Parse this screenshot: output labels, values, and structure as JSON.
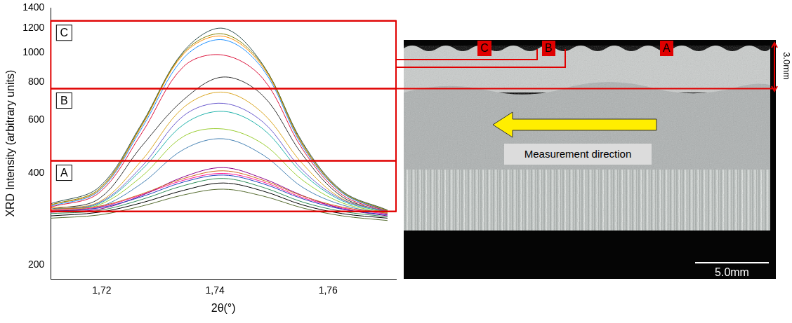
{
  "chart_data": {
    "type": "line",
    "x_label": "2θ(°)",
    "y_label": "XRD Intensity (arbitrary units)",
    "log": "y",
    "grid": false,
    "marker": "none",
    "line_style": "solid",
    "xlim": [
      1.711,
      1.772
    ],
    "xticks": [
      {
        "value": 1.72,
        "label": "1,72"
      },
      {
        "value": 1.74,
        "label": "1,74"
      },
      {
        "value": 1.76,
        "label": "1,76"
      }
    ],
    "ylim": [
      180,
      1400
    ],
    "yticks": [
      200,
      400,
      600,
      800,
      1000,
      1200,
      1400
    ],
    "x": [
      1.711,
      1.7195,
      1.727,
      1.7345,
      1.7415,
      1.7485,
      1.7555,
      1.7625,
      1.7705
    ],
    "series": [
      {
        "color": "#1f3fbf",
        "values": [
          300,
          308,
          335,
          375,
          395,
          370,
          330,
          305,
          292
        ]
      },
      {
        "color": "#2e8b57",
        "values": [
          295,
          302,
          328,
          365,
          385,
          360,
          322,
          300,
          288
        ]
      },
      {
        "color": "#000000",
        "values": [
          290,
          298,
          320,
          352,
          372,
          350,
          315,
          295,
          285
        ]
      },
      {
        "color": "#d2691e",
        "values": [
          305,
          312,
          342,
          385,
          408,
          380,
          337,
          310,
          296
        ]
      },
      {
        "color": "#8b008b",
        "values": [
          298,
          305,
          338,
          390,
          418,
          385,
          338,
          306,
          290
        ]
      },
      {
        "color": "#556b2f",
        "values": [
          285,
          292,
          312,
          340,
          355,
          337,
          308,
          290,
          280
        ]
      },
      {
        "color": "#ff1493",
        "values": [
          302,
          310,
          340,
          380,
          400,
          375,
          333,
          308,
          294
        ]
      },
      {
        "color": "#4682b4",
        "values": [
          300,
          310,
          370,
          480,
          520,
          460,
          360,
          315,
          295
        ]
      },
      {
        "color": "#9acd32",
        "values": [
          302,
          315,
          390,
          530,
          560,
          500,
          380,
          320,
          297
        ]
      },
      {
        "color": "#20b2aa",
        "values": [
          305,
          318,
          410,
          580,
          640,
          560,
          400,
          325,
          298
        ]
      },
      {
        "color": "#6a5acd",
        "values": [
          305,
          320,
          420,
          620,
          680,
          590,
          410,
          328,
          300
        ]
      },
      {
        "color": "#daa520",
        "values": [
          308,
          322,
          440,
          660,
          740,
          630,
          430,
          330,
          300
        ]
      },
      {
        "color": "#333333",
        "values": [
          305,
          330,
          490,
          700,
          830,
          720,
          460,
          335,
          298
        ]
      },
      {
        "color": "#dc143c",
        "values": [
          310,
          345,
          540,
          900,
          980,
          820,
          480,
          340,
          300
        ]
      },
      {
        "color": "#1e90ff",
        "values": [
          312,
          350,
          560,
          960,
          1100,
          880,
          490,
          345,
          300
        ]
      },
      {
        "color": "#808000",
        "values": [
          315,
          355,
          575,
          1000,
          1150,
          905,
          500,
          348,
          302
        ]
      },
      {
        "color": "#2f4f4f",
        "values": [
          318,
          360,
          580,
          1010,
          1200,
          910,
          505,
          350,
          303
        ]
      },
      {
        "color": "#ff8c00",
        "values": [
          315,
          352,
          570,
          990,
          1130,
          895,
          495,
          346,
          301
        ]
      }
    ],
    "annotations": [
      {
        "label": "C",
        "y_from": 760,
        "y_to": 1270
      },
      {
        "label": "B",
        "y_from": 440,
        "y_to": 760
      },
      {
        "label": "A",
        "y_from": 300,
        "y_to": 440
      }
    ]
  },
  "micrograph": {
    "region_labels": [
      "C",
      "B",
      "A"
    ],
    "arrow_label": "Measurement direction",
    "depth_label": "3.0mm",
    "scale_bar": "5.0mm"
  }
}
